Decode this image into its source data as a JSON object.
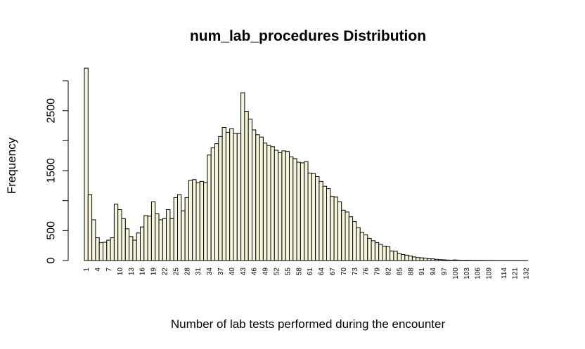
{
  "chart_data": {
    "type": "bar",
    "title": "num_lab_procedures Distribution",
    "xlabel": "Number of lab tests performed during the encounter",
    "ylabel": "Frequency",
    "ylim": [
      0,
      3300
    ],
    "yticks": [
      0,
      500,
      1500,
      2500
    ],
    "ytick_marks": [
      0,
      500,
      1000,
      1500,
      2000,
      2500,
      3000
    ],
    "bar_fill": "#f5f5dc",
    "grid": false,
    "legend": "none",
    "categories": [
      1,
      2,
      3,
      4,
      5,
      6,
      7,
      8,
      9,
      10,
      11,
      12,
      13,
      14,
      15,
      16,
      17,
      18,
      19,
      20,
      21,
      22,
      23,
      24,
      25,
      26,
      27,
      28,
      29,
      30,
      31,
      32,
      33,
      34,
      35,
      36,
      37,
      38,
      39,
      40,
      41,
      42,
      43,
      44,
      45,
      46,
      47,
      48,
      49,
      50,
      51,
      52,
      53,
      54,
      55,
      56,
      57,
      58,
      59,
      60,
      61,
      62,
      63,
      64,
      65,
      66,
      67,
      68,
      69,
      70,
      71,
      72,
      73,
      74,
      75,
      76,
      77,
      78,
      79,
      80,
      81,
      82,
      83,
      84,
      85,
      86,
      87,
      88,
      89,
      90,
      91,
      92,
      93,
      94,
      95,
      96,
      97,
      98,
      99,
      100,
      101,
      102,
      103,
      104,
      105,
      106,
      107,
      108,
      109,
      110,
      111,
      113,
      114,
      118,
      120,
      121,
      126,
      129,
      132
    ],
    "values": [
      3210,
      1100,
      680,
      380,
      300,
      305,
      340,
      380,
      940,
      850,
      700,
      530,
      400,
      340,
      460,
      560,
      750,
      740,
      980,
      780,
      680,
      700,
      850,
      700,
      1050,
      1100,
      830,
      1050,
      1340,
      1350,
      1300,
      1320,
      1300,
      1760,
      1880,
      1950,
      2070,
      2220,
      2140,
      2200,
      2120,
      2120,
      2800,
      2490,
      2360,
      2180,
      2100,
      2060,
      1960,
      1920,
      1900,
      1840,
      1800,
      1830,
      1820,
      1730,
      1700,
      1640,
      1630,
      1650,
      1460,
      1450,
      1400,
      1320,
      1240,
      1200,
      1070,
      1060,
      980,
      840,
      810,
      730,
      650,
      550,
      470,
      430,
      370,
      330,
      300,
      270,
      240,
      230,
      160,
      155,
      120,
      100,
      90,
      75,
      60,
      50,
      45,
      38,
      30,
      28,
      20,
      15,
      12,
      8,
      6,
      10,
      5,
      4,
      5,
      4,
      3,
      3,
      3,
      2,
      2,
      2,
      1,
      1,
      1,
      1,
      1,
      1,
      1,
      1,
      1
    ],
    "xtick_labels": [
      1,
      4,
      7,
      10,
      13,
      16,
      19,
      22,
      25,
      28,
      31,
      34,
      37,
      40,
      43,
      46,
      49,
      52,
      55,
      58,
      61,
      64,
      67,
      70,
      73,
      76,
      79,
      82,
      85,
      88,
      91,
      94,
      97,
      100,
      103,
      106,
      109,
      114,
      121,
      132
    ]
  }
}
